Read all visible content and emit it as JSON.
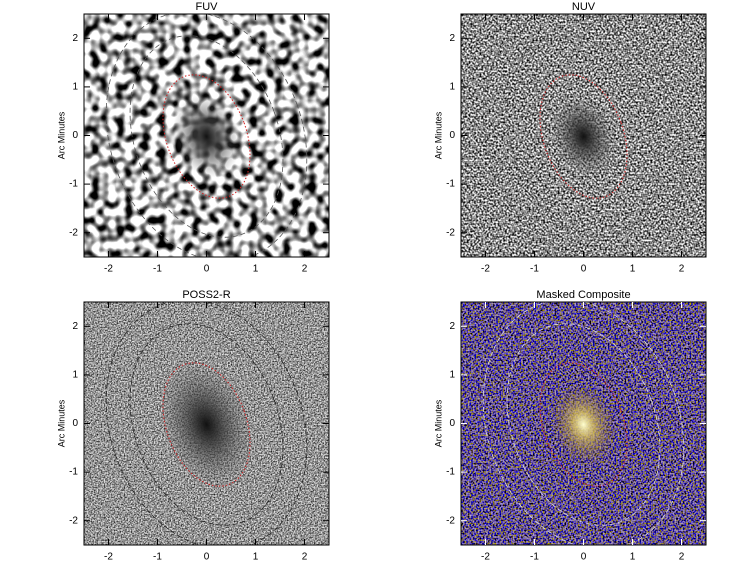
{
  "chart_data": [
    {
      "type": "image",
      "title": "FUV",
      "ylabel": "Arc Minutes",
      "xlim": [
        -2.5,
        2.5
      ],
      "ylim": [
        -2.5,
        2.5
      ],
      "xticks": [
        -2,
        -1,
        0,
        1,
        2
      ],
      "yticks": [
        -2,
        -1,
        0,
        1,
        2
      ]
    },
    {
      "type": "image",
      "title": "NUV",
      "ylabel": "Arc Minutes",
      "xlim": [
        -2.5,
        2.5
      ],
      "ylim": [
        -2.5,
        2.5
      ],
      "xticks": [
        -2,
        -1,
        0,
        1,
        2
      ],
      "yticks": [
        -2,
        -1,
        0,
        1,
        2
      ]
    },
    {
      "type": "image",
      "title": "POSS2-R",
      "ylabel": "Arc Minutes",
      "xlim": [
        -2.5,
        2.5
      ],
      "ylim": [
        -2.5,
        2.5
      ],
      "xticks": [
        -2,
        -1,
        0,
        1,
        2
      ],
      "yticks": [
        -2,
        -1,
        0,
        1,
        2
      ]
    },
    {
      "type": "image",
      "title": "Masked Composite",
      "ylabel": "Arc Minutes",
      "xlim": [
        -2.5,
        2.5
      ],
      "ylim": [
        -2.5,
        2.5
      ],
      "xticks": [
        -2,
        -1,
        0,
        1,
        2
      ],
      "yticks": [
        -2,
        -1,
        0,
        1,
        2
      ]
    }
  ]
}
